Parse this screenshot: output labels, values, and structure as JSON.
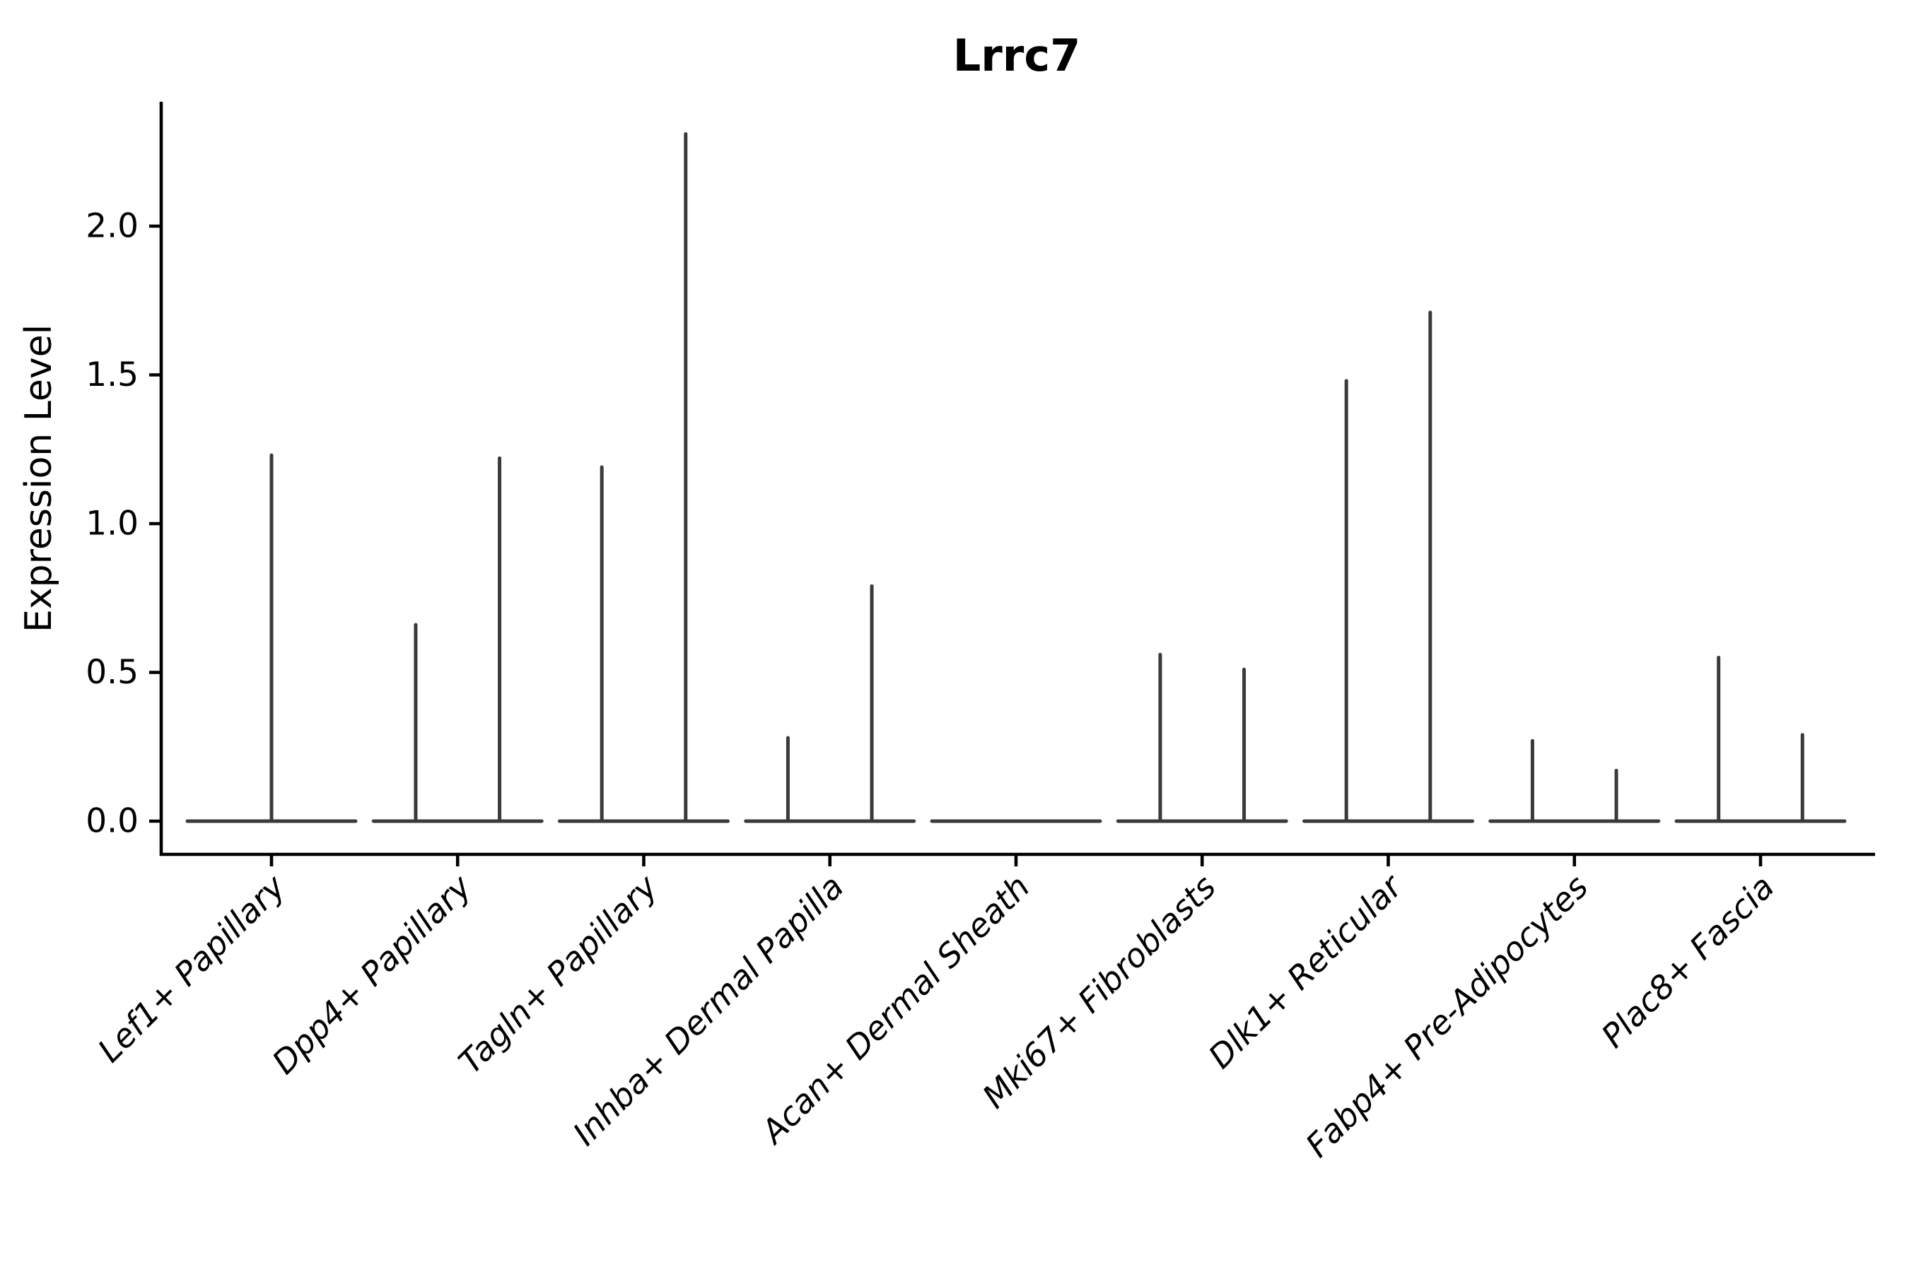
{
  "chart_data": {
    "type": "violin",
    "title": "Lrrc7",
    "ylabel": "Expression Level",
    "xlabel": "",
    "ylim": [
      -0.11,
      2.42
    ],
    "yticks": [
      0.0,
      0.5,
      1.0,
      1.5,
      2.0
    ],
    "grid": false,
    "legend": "none",
    "x_label_rotation_deg": 45,
    "categories": [
      "Lef1+ Papillary",
      "Dpp4+ Papillary",
      "Tagln+ Papillary",
      "Inhba+ Dermal Papilla",
      "Acan+ Dermal Sheath",
      "Mki67+ Fibroblasts",
      "Dlk1+ Reticular",
      "Fabp4+ Pre-Adipocytes",
      "Plac8+ Fascia"
    ],
    "violins": [
      {
        "category": "Lef1+ Papillary",
        "baseline_value": 0,
        "spikes": [
          {
            "position": "center",
            "max": 1.23
          }
        ]
      },
      {
        "category": "Dpp4+ Papillary",
        "baseline_value": 0,
        "spikes": [
          {
            "position": "left",
            "max": 0.66
          },
          {
            "position": "right",
            "max": 1.22
          }
        ]
      },
      {
        "category": "Tagln+ Papillary",
        "baseline_value": 0,
        "spikes": [
          {
            "position": "left",
            "max": 1.19
          },
          {
            "position": "right",
            "max": 2.31
          }
        ]
      },
      {
        "category": "Inhba+ Dermal Papilla",
        "baseline_value": 0,
        "spikes": [
          {
            "position": "left",
            "max": 0.28
          },
          {
            "position": "right",
            "max": 0.79
          }
        ]
      },
      {
        "category": "Acan+ Dermal Sheath",
        "baseline_value": 0,
        "spikes": []
      },
      {
        "category": "Mki67+ Fibroblasts",
        "baseline_value": 0,
        "spikes": [
          {
            "position": "left",
            "max": 0.56
          },
          {
            "position": "right",
            "max": 0.51
          }
        ]
      },
      {
        "category": "Dlk1+ Reticular",
        "baseline_value": 0,
        "spikes": [
          {
            "position": "left",
            "max": 1.48
          },
          {
            "position": "right",
            "max": 1.71
          }
        ]
      },
      {
        "category": "Fabp4+ Pre-Adipocytes",
        "baseline_value": 0,
        "spikes": [
          {
            "position": "left",
            "max": 0.27
          },
          {
            "position": "right",
            "max": 0.17
          }
        ]
      },
      {
        "category": "Plac8+ Fascia",
        "baseline_value": 0,
        "spikes": [
          {
            "position": "left",
            "max": 0.55
          },
          {
            "position": "right",
            "max": 0.29
          }
        ]
      }
    ],
    "colors": {
      "violin_stroke": "#3a3a3a",
      "axis": "#000000",
      "text": "#000000",
      "background": "#ffffff"
    }
  }
}
